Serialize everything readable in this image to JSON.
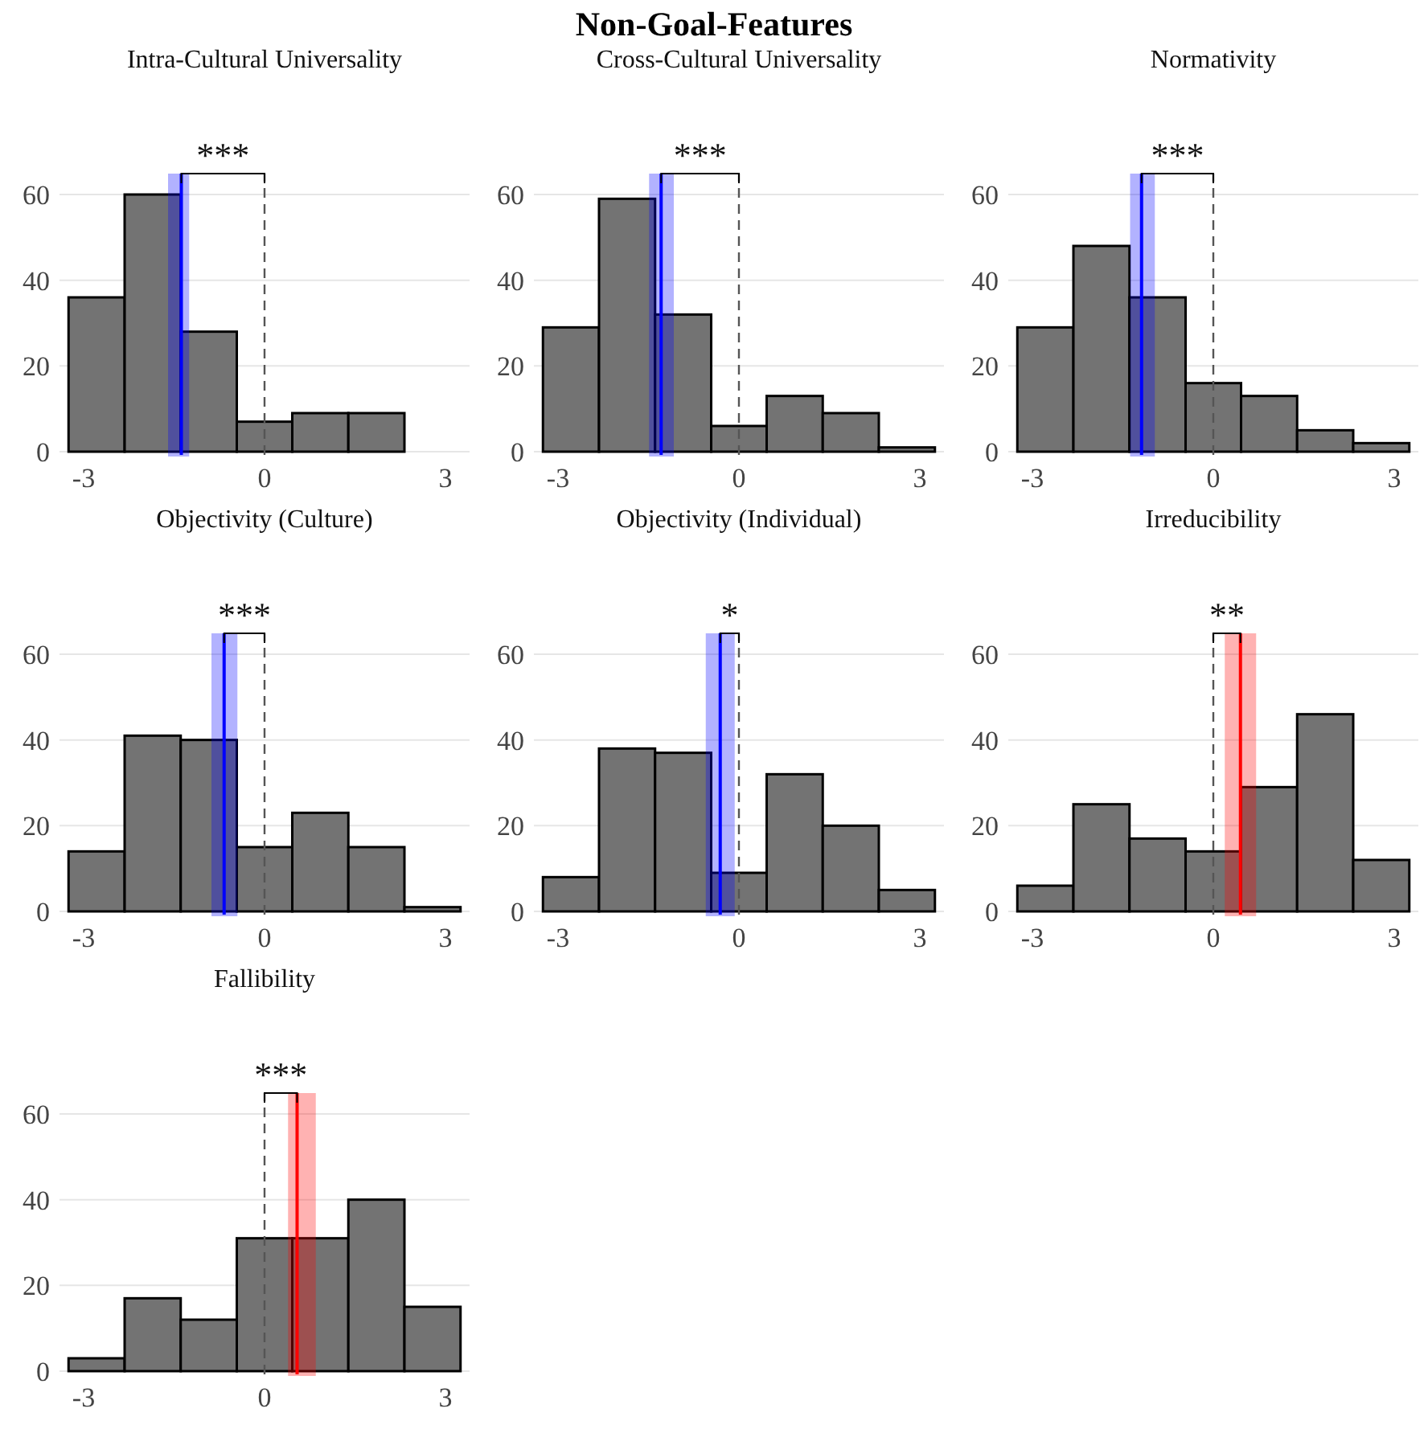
{
  "chart_data": [
    {
      "type": "other",
      "title": "Non-Goal-Features"
    },
    {
      "type": "histogram",
      "title": "Intra-Cultural Universality",
      "bins": [
        -3.25,
        -2.32,
        -1.39,
        -0.46,
        0.46,
        1.39,
        2.32
      ],
      "values": [
        36,
        60,
        28,
        7,
        9,
        9
      ],
      "color": "#737373",
      "xlim": [
        -3.4,
        3.4
      ],
      "ylim": [
        0,
        60
      ],
      "xticks": [
        -3,
        0,
        3
      ],
      "yticks": [
        0,
        20,
        40,
        60
      ],
      "grid": "y",
      "ref_lines": [
        {
          "axis": "x",
          "value": 0,
          "line_style": "dashed",
          "color": "#555555"
        },
        {
          "axis": "x",
          "value": -1.38,
          "color": "#0000ff"
        }
      ],
      "bands": [
        {
          "axis": "x",
          "from": -1.6,
          "to": -1.25,
          "color": "#0000ff"
        }
      ],
      "annotations": [
        "***"
      ]
    },
    {
      "type": "histogram",
      "title": "Cross-Cultural Universality",
      "bins": [
        -3.25,
        -2.32,
        -1.39,
        -0.46,
        0.46,
        1.39,
        2.32,
        3.25
      ],
      "values": [
        29,
        59,
        32,
        6,
        13,
        9,
        1
      ],
      "color": "#737373",
      "xlim": [
        -3.4,
        3.4
      ],
      "ylim": [
        0,
        60
      ],
      "xticks": [
        -3,
        0,
        3
      ],
      "yticks": [
        0,
        20,
        40,
        60
      ],
      "grid": "y",
      "ref_lines": [
        {
          "axis": "x",
          "value": 0,
          "line_style": "dashed",
          "color": "#555555"
        },
        {
          "axis": "x",
          "value": -1.29,
          "color": "#0000ff"
        }
      ],
      "bands": [
        {
          "axis": "x",
          "from": -1.49,
          "to": -1.08,
          "color": "#0000ff"
        }
      ],
      "annotations": [
        "***"
      ]
    },
    {
      "type": "histogram",
      "title": "Normativity",
      "bins": [
        -3.25,
        -2.32,
        -1.39,
        -0.46,
        0.46,
        1.39,
        2.32,
        3.25
      ],
      "values": [
        29,
        48,
        36,
        16,
        13,
        5,
        2
      ],
      "color": "#737373",
      "xlim": [
        -3.4,
        3.4
      ],
      "ylim": [
        0,
        60
      ],
      "xticks": [
        -3,
        0,
        3
      ],
      "yticks": [
        0,
        20,
        40,
        60
      ],
      "grid": "y",
      "ref_lines": [
        {
          "axis": "x",
          "value": 0,
          "line_style": "dashed",
          "color": "#555555"
        },
        {
          "axis": "x",
          "value": -1.19,
          "color": "#0000ff"
        }
      ],
      "bands": [
        {
          "axis": "x",
          "from": -1.38,
          "to": -0.97,
          "color": "#0000ff"
        }
      ],
      "annotations": [
        "***"
      ]
    },
    {
      "type": "histogram",
      "title": "Objectivity (Culture)",
      "bins": [
        -3.25,
        -2.32,
        -1.39,
        -0.46,
        0.46,
        1.39,
        2.32,
        3.25
      ],
      "values": [
        14,
        41,
        40,
        15,
        23,
        15,
        1
      ],
      "color": "#737373",
      "xlim": [
        -3.4,
        3.4
      ],
      "ylim": [
        0,
        60
      ],
      "xticks": [
        -3,
        0,
        3
      ],
      "yticks": [
        0,
        20,
        40,
        60
      ],
      "grid": "y",
      "ref_lines": [
        {
          "axis": "x",
          "value": 0,
          "line_style": "dashed",
          "color": "#555555"
        },
        {
          "axis": "x",
          "value": -0.67,
          "color": "#0000ff"
        }
      ],
      "bands": [
        {
          "axis": "x",
          "from": -0.88,
          "to": -0.45,
          "color": "#0000ff"
        }
      ],
      "annotations": [
        "***"
      ]
    },
    {
      "type": "histogram",
      "title": "Objectivity (Individual)",
      "bins": [
        -3.25,
        -2.32,
        -1.39,
        -0.46,
        0.46,
        1.39,
        2.32,
        3.25
      ],
      "values": [
        8,
        38,
        37,
        9,
        32,
        20,
        5
      ],
      "color": "#737373",
      "xlim": [
        -3.4,
        3.4
      ],
      "ylim": [
        0,
        60
      ],
      "xticks": [
        -3,
        0,
        3
      ],
      "yticks": [
        0,
        20,
        40,
        60
      ],
      "grid": "y",
      "ref_lines": [
        {
          "axis": "x",
          "value": 0,
          "line_style": "dashed",
          "color": "#555555"
        },
        {
          "axis": "x",
          "value": -0.31,
          "color": "#0000ff"
        }
      ],
      "bands": [
        {
          "axis": "x",
          "from": -0.55,
          "to": -0.07,
          "color": "#0000ff"
        }
      ],
      "annotations": [
        "*"
      ]
    },
    {
      "type": "histogram",
      "title": "Irreducibility",
      "bins": [
        -3.25,
        -2.32,
        -1.39,
        -0.46,
        0.46,
        1.39,
        2.32,
        3.25
      ],
      "values": [
        6,
        25,
        17,
        14,
        29,
        46,
        12
      ],
      "color": "#737373",
      "xlim": [
        -3.4,
        3.4
      ],
      "ylim": [
        0,
        60
      ],
      "xticks": [
        -3,
        0,
        3
      ],
      "yticks": [
        0,
        20,
        40,
        60
      ],
      "grid": "y",
      "ref_lines": [
        {
          "axis": "x",
          "value": 0,
          "line_style": "dashed",
          "color": "#555555"
        },
        {
          "axis": "x",
          "value": 0.45,
          "color": "#ff0000"
        }
      ],
      "bands": [
        {
          "axis": "x",
          "from": 0.19,
          "to": 0.71,
          "color": "#ff0000"
        }
      ],
      "annotations": [
        "**"
      ]
    },
    {
      "type": "histogram",
      "title": "Fallibility",
      "bins": [
        -3.25,
        -2.32,
        -1.39,
        -0.46,
        0.46,
        1.39,
        2.32,
        3.25
      ],
      "values": [
        3,
        17,
        12,
        31,
        31,
        40,
        15
      ],
      "color": "#737373",
      "xlim": [
        -3.4,
        3.4
      ],
      "ylim": [
        0,
        60
      ],
      "xticks": [
        -3,
        0,
        3
      ],
      "yticks": [
        0,
        20,
        40,
        60
      ],
      "grid": "y",
      "ref_lines": [
        {
          "axis": "x",
          "value": 0,
          "line_style": "dashed",
          "color": "#555555"
        },
        {
          "axis": "x",
          "value": 0.54,
          "color": "#ff0000"
        }
      ],
      "bands": [
        {
          "axis": "x",
          "from": 0.39,
          "to": 0.85,
          "color": "#ff0000"
        }
      ],
      "annotations": [
        "***"
      ]
    }
  ]
}
